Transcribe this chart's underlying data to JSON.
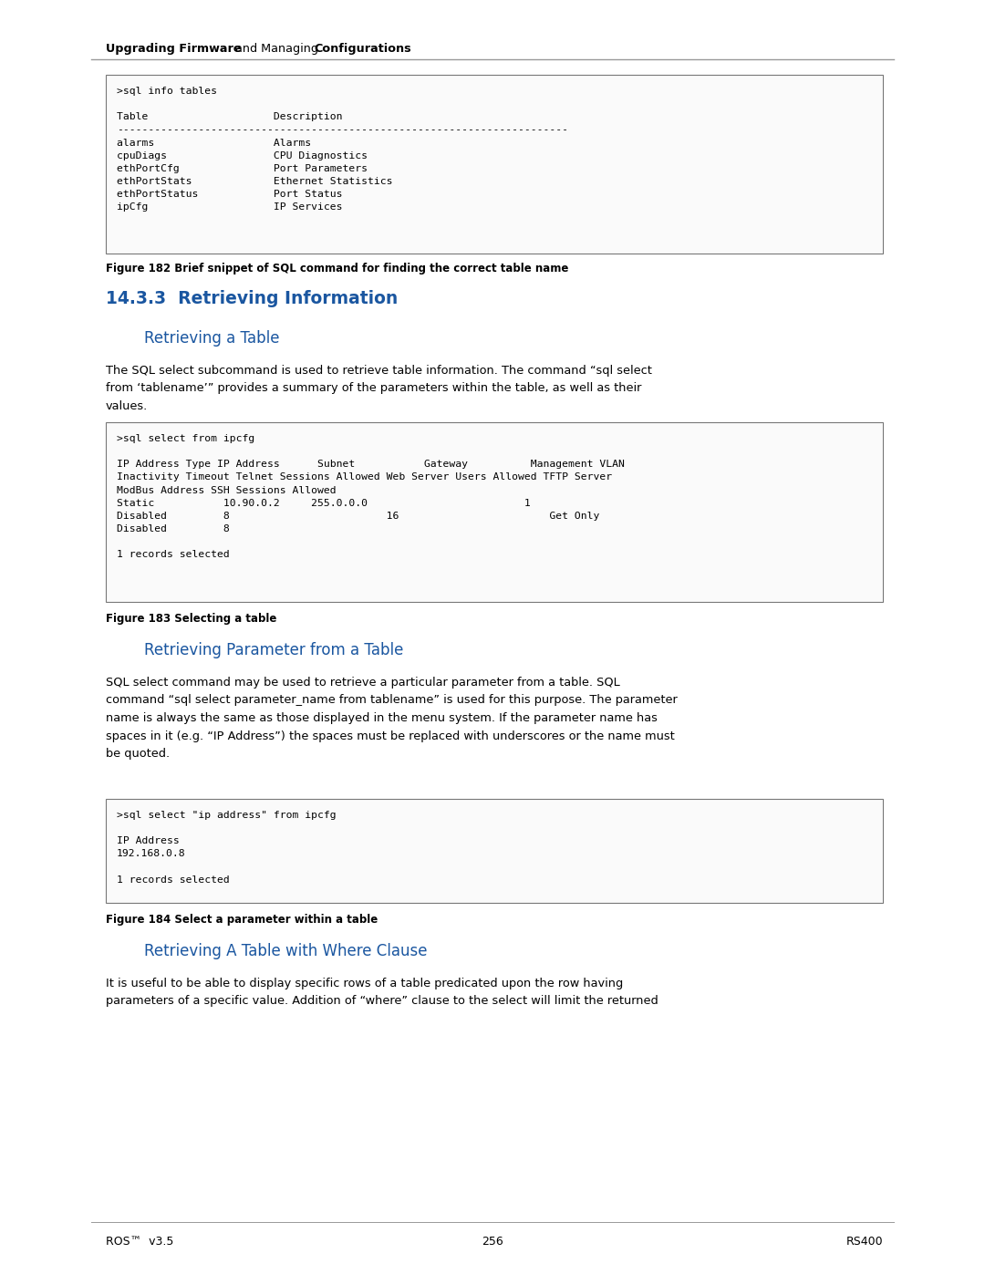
{
  "page_width": 10.8,
  "page_height": 13.97,
  "bg_color": "#ffffff",
  "section_color": "#1a56a0",
  "footer_left": "ROS™  v3.5",
  "footer_center": "256",
  "footer_right": "RS400",
  "code_block1": ">sql info tables\n\nTable                    Description\n------------------------------------------------------------------------\nalarms                   Alarms\ncpuDiags                 CPU Diagnostics\nethPortCfg               Port Parameters\nethPortStats             Ethernet Statistics\nethPortStatus            Port Status\nipCfg                    IP Services",
  "fig1_caption": "Figure 182 Brief snippet of SQL command for finding the correct table name",
  "section_14_3_3": "14.3.3  Retrieving Information",
  "subsection1": "Retrieving a Table",
  "body1_lines": [
    "The SQL select subcommand is used to retrieve table information. The command “sql select",
    "from ‘tablename’” provides a summary of the parameters within the table, as well as their",
    "values."
  ],
  "code_block2": ">sql select from ipcfg\n\nIP Address Type IP Address      Subnet           Gateway          Management VLAN\nInactivity Timeout Telnet Sessions Allowed Web Server Users Allowed TFTP Server\nModBus Address SSH Sessions Allowed\nStatic           10.90.0.2     255.0.0.0                         1\nDisabled         8                         16                        Get Only\nDisabled         8\n\n1 records selected",
  "fig2_caption": "Figure 183 Selecting a table",
  "subsection2": "Retrieving Parameter from a Table",
  "body2_lines": [
    "SQL select command may be used to retrieve a particular parameter from a table. SQL",
    "command “sql select parameter_name from tablename” is used for this purpose. The parameter",
    "name is always the same as those displayed in the menu system. If the parameter name has",
    "spaces in it (e.g. “IP Address”) the spaces must be replaced with underscores or the name must",
    "be quoted."
  ],
  "code_block3": ">sql select \"ip address\" from ipcfg\n\nIP Address\n192.168.0.8\n\n1 records selected",
  "fig3_caption": "Figure 184 Select a parameter within a table",
  "subsection3": "Retrieving A Table with Where Clause",
  "body3_lines": [
    "It is useful to be able to display specific rows of a table predicated upon the row having",
    "parameters of a specific value. Addition of “where” clause to the select will limit the returned"
  ]
}
